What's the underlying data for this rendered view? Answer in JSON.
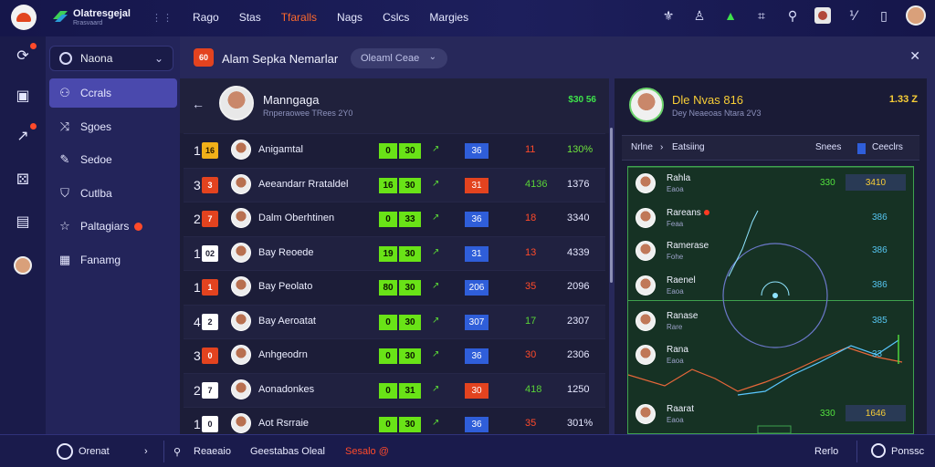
{
  "brand": {
    "title": "Olatresgejal",
    "subtitle": "Rrasvaard"
  },
  "nav": [
    "Rago",
    "Stas",
    "Tfaralls",
    "Nags",
    "Cslcs",
    "Margies"
  ],
  "nav_active": 2,
  "colors": {
    "accent": "#ff6a2b",
    "green": "#69e317",
    "yellow": "#f8ce36",
    "blue": "#2f5ed9",
    "red": "#e3431f"
  },
  "menu": {
    "top_label": "Naona",
    "items": [
      {
        "label": "Ccrals",
        "icon": "people-icon"
      },
      {
        "label": "Sgoes",
        "icon": "shuffle-icon"
      },
      {
        "label": "Sedoe",
        "icon": "edit-icon"
      },
      {
        "label": "Cutlba",
        "icon": "shield-icon"
      },
      {
        "label": "Paltagiars",
        "icon": "star-icon"
      },
      {
        "label": "Fanamg",
        "icon": "table-icon"
      }
    ]
  },
  "panel": {
    "badge": "60",
    "title": "Alam Sepka Nemarlar",
    "select": "Oleaml Ceae",
    "close": "✕"
  },
  "manager": {
    "name": "Manngaga",
    "sub": "Rnperaowee TRees 2Y0",
    "value": "$30 56"
  },
  "rows": [
    {
      "num": "1",
      "tag": "16",
      "tag_color": "#f1b019",
      "tag_text": "#2a1b00",
      "name": "Anigamtal",
      "g1": "0",
      "g2": "30",
      "arrow": "↗",
      "pill": "36",
      "pill_color": "#2f5ed9",
      "v1": "11",
      "v1_color": "#ff4a2a",
      "v2": "130%",
      "v2_color": "#6ee33c"
    },
    {
      "num": "3",
      "tag": "3",
      "tag_color": "#e3431f",
      "tag_text": "#ffffff",
      "name": "Aeeandarr Rrataldel",
      "g1": "16",
      "g2": "30",
      "arrow": "↗",
      "pill": "31",
      "pill_color": "#e3431f",
      "v1": "4136",
      "v1_color": "#59d437",
      "v2": "1376",
      "v2_color": "#e6e8ff"
    },
    {
      "num": "2",
      "tag": "7",
      "tag_color": "#e3431f",
      "tag_text": "#ffffff",
      "name": "Dalm Oberhtinen",
      "g1": "0",
      "g2": "33",
      "arrow": "↗",
      "pill": "36",
      "pill_color": "#2f5ed9",
      "v1": "18",
      "v1_color": "#ff4a2a",
      "v2": "3340",
      "v2_color": "#e6e8ff"
    },
    {
      "num": "1",
      "tag": "02",
      "tag_color": "#ffffff",
      "tag_text": "#1a1a2e",
      "name": "Bay Reoede",
      "g1": "19",
      "g2": "30",
      "arrow": "↗",
      "pill": "31",
      "pill_color": "#2f5ed9",
      "v1": "13",
      "v1_color": "#ff4a2a",
      "v2": "4339",
      "v2_color": "#e6e8ff"
    },
    {
      "num": "1",
      "tag": "1",
      "tag_color": "#e3431f",
      "tag_text": "#ffffff",
      "name": "Bay Peolato",
      "g1": "80",
      "g2": "30",
      "arrow": "↗",
      "pill": "206",
      "pill_color": "#2f5ed9",
      "v1": "35",
      "v1_color": "#ff4a2a",
      "v2": "2096",
      "v2_color": "#e6e8ff"
    },
    {
      "num": "4",
      "tag": "2",
      "tag_color": "#ffffff",
      "tag_text": "#1a1a2e",
      "name": "Bay Aeroatat",
      "g1": "0",
      "g2": "30",
      "arrow": "↗",
      "pill": "307",
      "pill_color": "#2f5ed9",
      "v1": "17",
      "v1_color": "#59d437",
      "v2": "2307",
      "v2_color": "#e6e8ff"
    },
    {
      "num": "3",
      "tag": "0",
      "tag_color": "#e3431f",
      "tag_text": "#ffffff",
      "name": "Anhgeodrn",
      "g1": "0",
      "g2": "30",
      "arrow": "↗",
      "pill": "36",
      "pill_color": "#2f5ed9",
      "v1": "30",
      "v1_color": "#ff4a2a",
      "v2": "2306",
      "v2_color": "#e6e8ff"
    },
    {
      "num": "2",
      "tag": "7",
      "tag_color": "#ffffff",
      "tag_text": "#1a1a2e",
      "name": "Aonadonkes",
      "g1": "0",
      "g2": "31",
      "arrow": "↗",
      "pill": "30",
      "pill_color": "#e3431f",
      "v1": "418",
      "v1_color": "#59d437",
      "v2": "1250",
      "v2_color": "#e6e8ff"
    },
    {
      "num": "1",
      "tag": "0",
      "tag_color": "#ffffff",
      "tag_text": "#1a1a2e",
      "name": "Aot Rsrraie",
      "g1": "0",
      "g2": "30",
      "arrow": "↗",
      "pill": "36",
      "pill_color": "#2f5ed9",
      "v1": "35",
      "v1_color": "#ff4a2a",
      "v2": "301%",
      "v2_color": "#e6e8ff"
    }
  ],
  "right": {
    "title": "Dle Nvas 816",
    "sub": "Dey Neaeoas Ntara 2V3",
    "value": "1.33 Z",
    "tabs": {
      "a": "Nrlne",
      "b": "Eatsiing",
      "c": "Snees",
      "d": "Ceeclrs"
    },
    "players": [
      {
        "name": "Rahla",
        "sub": "Eaoa",
        "green": "330",
        "box": "3410"
      },
      {
        "name": "Rareans",
        "sub": "Feaa",
        "flag": true,
        "val": "386"
      },
      {
        "name": "Ramerase",
        "sub": "Fohe",
        "val": "386"
      },
      {
        "name": "Raenel",
        "sub": "Eaoa",
        "val": "386"
      },
      {
        "name": "Ranase",
        "sub": "Rare",
        "val": "385"
      },
      {
        "name": "Rana",
        "sub": "Eaoa",
        "val": "33"
      },
      {
        "name": "Raarat",
        "sub": "Eaoa",
        "green": "330",
        "box": "1646"
      }
    ]
  },
  "bottom": {
    "left_label": "Orenat",
    "items": [
      "Reaeaio",
      "Geestabas Oleal",
      "Sesalo @"
    ],
    "right_label": "Rerlo",
    "right2": "Ponssc"
  }
}
